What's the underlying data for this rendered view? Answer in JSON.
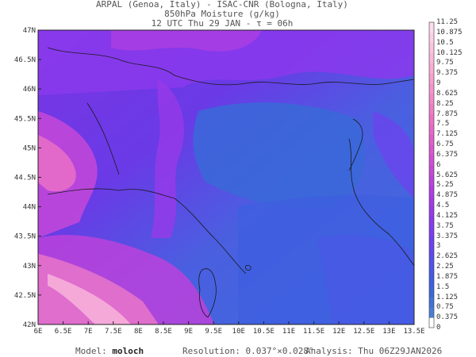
{
  "header": {
    "line1": "ARPAL (Genoa, Italy)  -  ISAC-CNR (Bologna, Italy)",
    "line2": "850hPa Moisture (g/kg)",
    "line3": "12 UTC Thu 29 JAN  -  τ = 06h"
  },
  "map": {
    "lat_labels": [
      "47N",
      "46.5N",
      "46N",
      "45.5N",
      "45N",
      "44.5N",
      "44N",
      "43.5N",
      "43N",
      "42.5N",
      "42N"
    ],
    "lon_labels": [
      "6E",
      "6.5E",
      "7E",
      "7.5E",
      "8E",
      "8.5E",
      "9E",
      "9.5E",
      "10E",
      "10.5E",
      "11E",
      "11.5E",
      "12E",
      "12.5E",
      "13E",
      "13.5E"
    ]
  },
  "colorbar": {
    "levels": [
      "0",
      "0.375",
      "0.75",
      "1.125",
      "1.5",
      "1.875",
      "2.25",
      "2.625",
      "3",
      "3.375",
      "3.75",
      "4.125",
      "4.5",
      "4.875",
      "5.25",
      "5.625",
      "6",
      "6.375",
      "6.75",
      "7.125",
      "7.5",
      "7.875",
      "8.25",
      "8.625",
      "9",
      "9.375",
      "9.75",
      "10.125",
      "10.5",
      "10.875",
      "11.25"
    ],
    "colors": [
      "#ffffff",
      "#4a7fd4",
      "#3f74d6",
      "#3a68d8",
      "#3f5fe0",
      "#4a58e6",
      "#5550ea",
      "#6248ec",
      "#7040ee",
      "#7e3cee",
      "#8a3aec",
      "#973ae8",
      "#a43ce4",
      "#b03ee0",
      "#bb42dc",
      "#c648d8",
      "#d04ed4",
      "#d856d0",
      "#e05ecc",
      "#e668c8",
      "#ec72c6",
      "#f07cc6",
      "#f488c8",
      "#f694cc",
      "#f8a0d0",
      "#f9acd6",
      "#fab8dc",
      "#fbc4e2",
      "#fcd0e8",
      "#fddcee"
    ]
  },
  "footer": {
    "model_label": "Model:",
    "model_value": "moloch",
    "resolution_label": "Resolution:",
    "resolution_value": "0.037°×0.028°",
    "analysis_label": "Analysis:",
    "analysis_value": "Thu 06Z29JAN2026"
  }
}
